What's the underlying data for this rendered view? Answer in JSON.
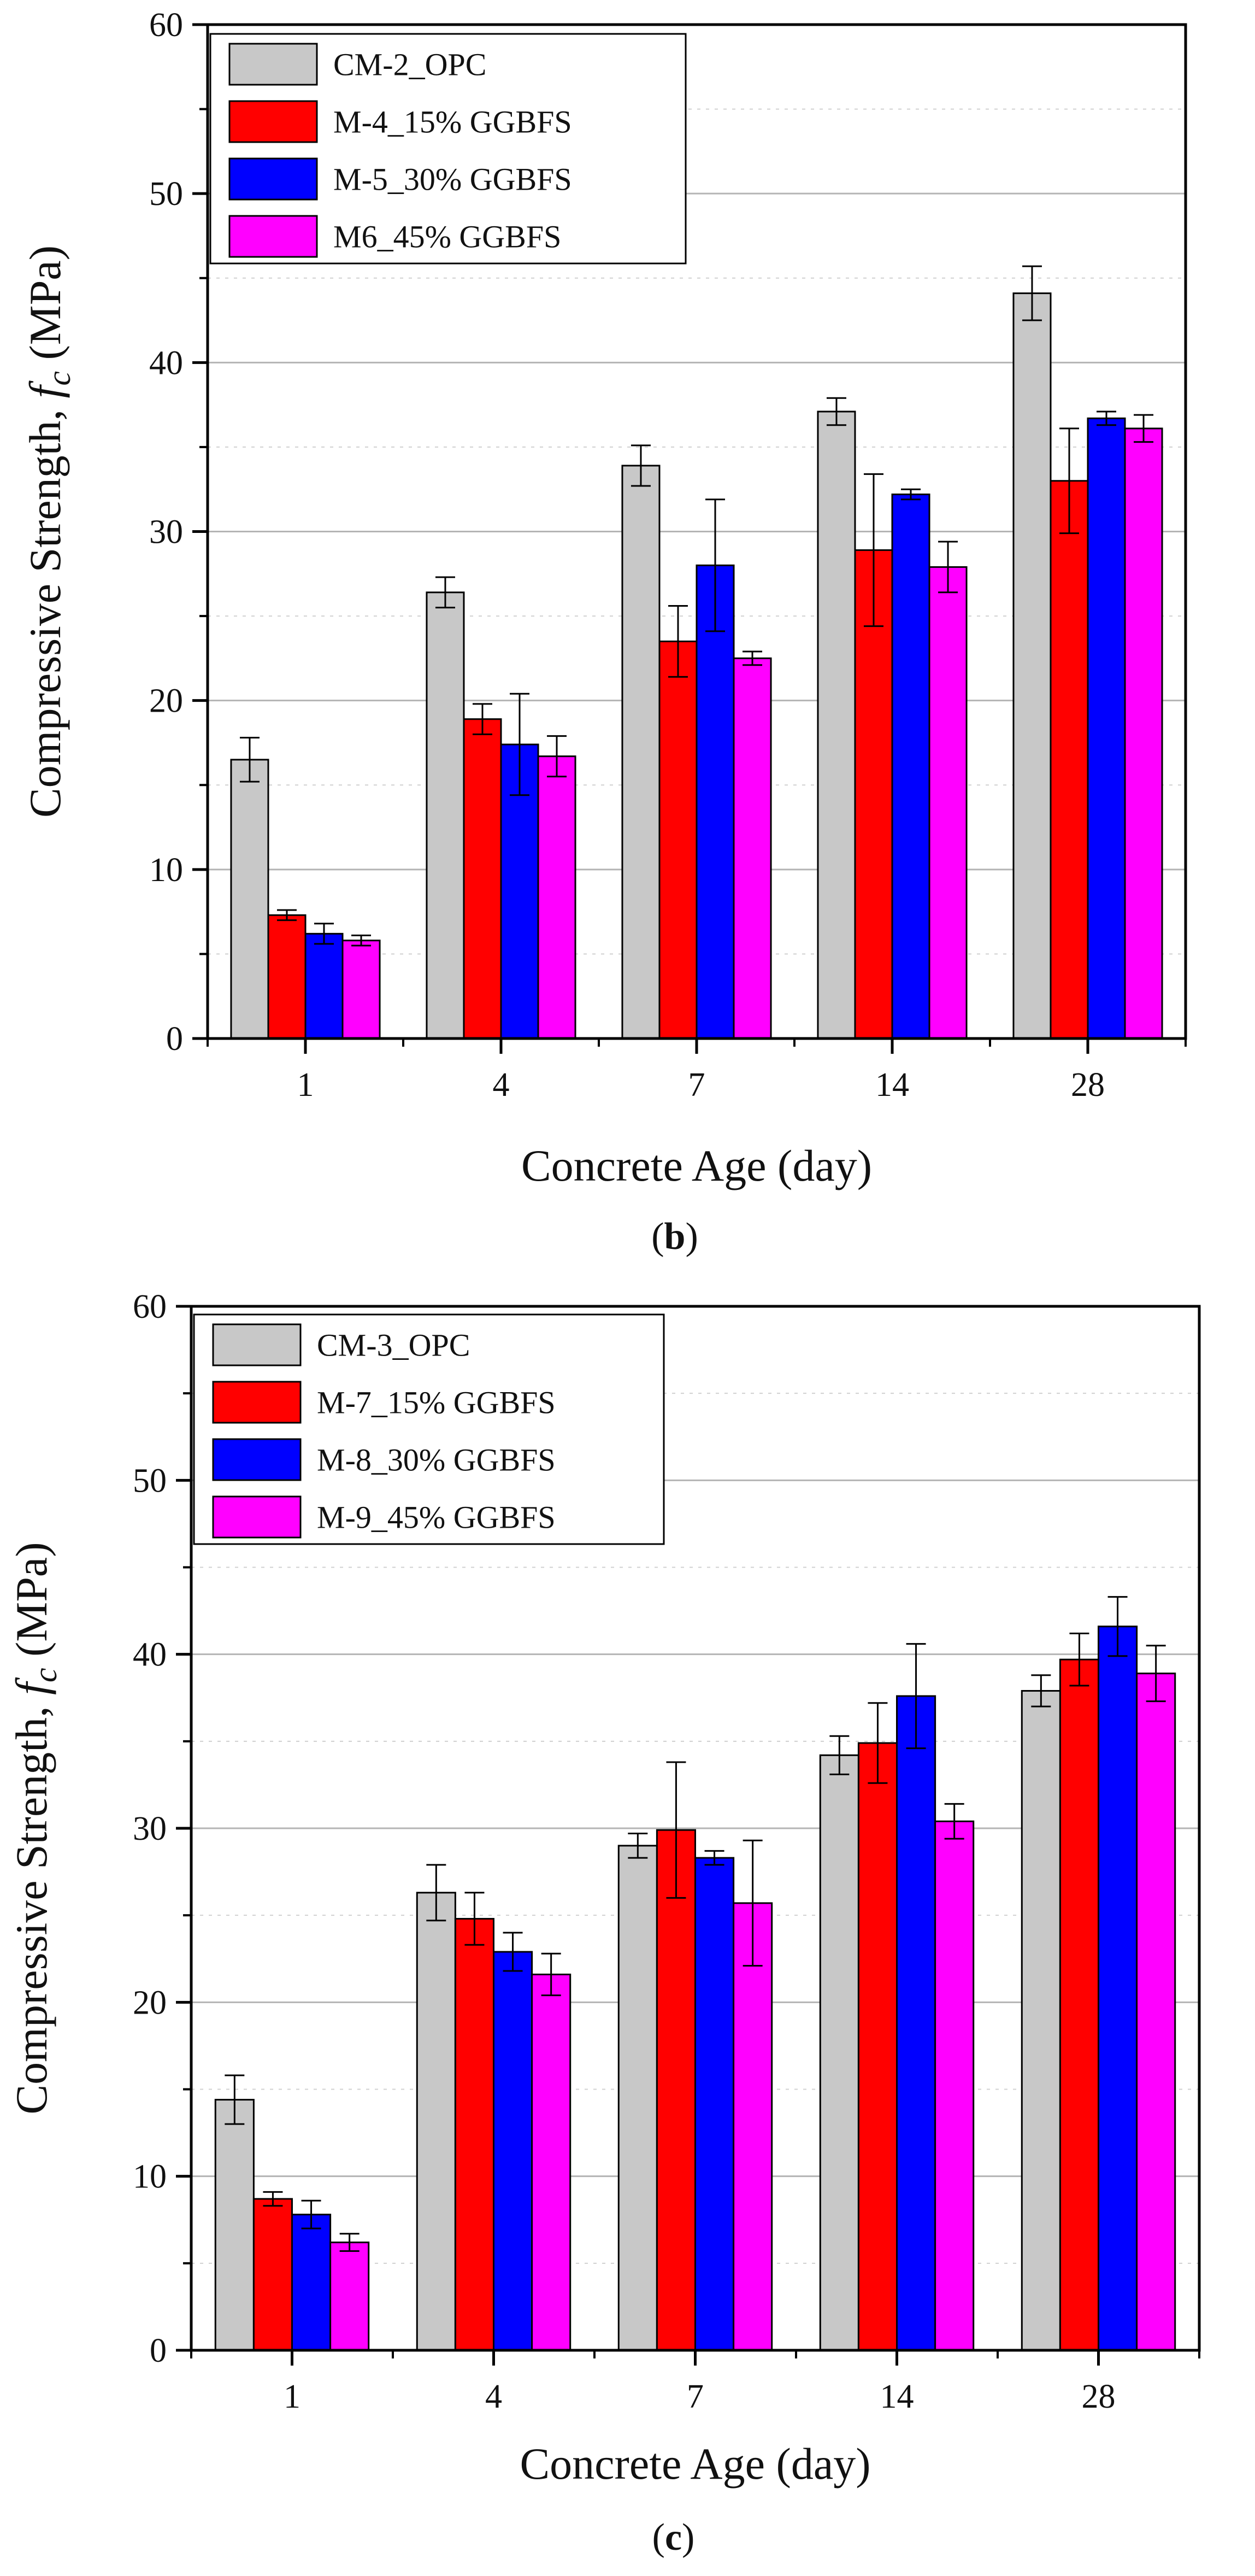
{
  "colors": {
    "series": [
      "#c8c8c8",
      "#ff0000",
      "#0000ff",
      "#ff00ff"
    ],
    "grid": "#b4b4b4",
    "axis": "#000000"
  },
  "chart_data": [
    {
      "type": "bar",
      "panel": "b",
      "panel_open": "(",
      "panel_close": ")",
      "xlabel": "Concrete Age (day)",
      "ylabel_main": "Compressive Strength, ",
      "ylabel_italic": "f",
      "ylabel_sub": "c",
      "ylabel_unit": " (MPa)",
      "ylim": [
        0,
        60
      ],
      "yticks": [
        0,
        10,
        20,
        30,
        40,
        50,
        60
      ],
      "grid": true,
      "legend_position": "top-left",
      "categories": [
        "1",
        "4",
        "7",
        "14",
        "28"
      ],
      "series": [
        {
          "name": "CM-2_OPC",
          "values": [
            16.5,
            26.4,
            33.9,
            37.1,
            44.1
          ],
          "errors": [
            1.3,
            0.9,
            1.2,
            0.8,
            1.6
          ]
        },
        {
          "name": "M-4_15% GGBFS",
          "values": [
            7.3,
            18.9,
            23.5,
            28.9,
            33.0
          ],
          "errors": [
            0.3,
            0.9,
            2.1,
            4.5,
            3.1
          ]
        },
        {
          "name": "M-5_30% GGBFS",
          "values": [
            6.2,
            17.4,
            28.0,
            32.2,
            36.7
          ],
          "errors": [
            0.6,
            3.0,
            3.9,
            0.3,
            0.4
          ]
        },
        {
          "name": "M6_45% GGBFS",
          "values": [
            5.8,
            16.7,
            22.5,
            27.9,
            36.1
          ],
          "errors": [
            0.3,
            1.2,
            0.4,
            1.5,
            0.8
          ]
        }
      ]
    },
    {
      "type": "bar",
      "panel": "c",
      "panel_open": "(",
      "panel_close": ")",
      "xlabel": "Concrete Age (day)",
      "ylabel_main": "Compressive Strength, ",
      "ylabel_italic": "f",
      "ylabel_sub": "c",
      "ylabel_unit": " (MPa)",
      "ylim": [
        0,
        60
      ],
      "yticks": [
        0,
        10,
        20,
        30,
        40,
        50,
        60
      ],
      "grid": true,
      "legend_position": "top-left",
      "categories": [
        "1",
        "4",
        "7",
        "14",
        "28"
      ],
      "series": [
        {
          "name": "CM-3_OPC",
          "values": [
            14.4,
            26.3,
            29.0,
            34.2,
            37.9
          ],
          "errors": [
            1.4,
            1.6,
            0.7,
            1.1,
            0.9
          ]
        },
        {
          "name": "M-7_15% GGBFS",
          "values": [
            8.7,
            24.8,
            29.9,
            34.9,
            39.7
          ],
          "errors": [
            0.4,
            1.5,
            3.9,
            2.3,
            1.5
          ]
        },
        {
          "name": "M-8_30% GGBFS",
          "values": [
            7.8,
            22.9,
            28.3,
            37.6,
            41.6
          ],
          "errors": [
            0.8,
            1.1,
            0.4,
            3.0,
            1.7
          ]
        },
        {
          "name": "M-9_45% GGBFS",
          "values": [
            6.2,
            21.6,
            25.7,
            30.4,
            38.9
          ],
          "errors": [
            0.5,
            1.2,
            3.6,
            1.0,
            1.6
          ]
        }
      ]
    }
  ]
}
